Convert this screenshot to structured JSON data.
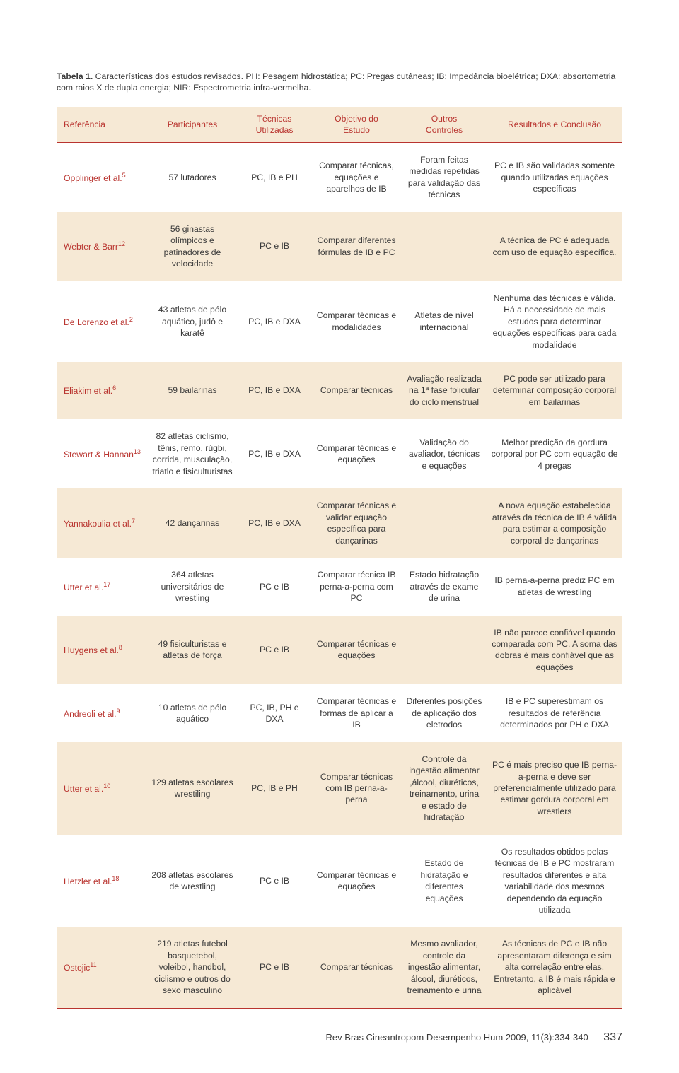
{
  "caption": {
    "label": "Tabela 1.",
    "text": " Características dos estudos revisados. PH: Pesagem hidrostática; PC: Pregas cutâneas; IB: Impedância bioelétrica; DXA: absortometria com raios X de dupla energia; NIR: Espectrometria infra-vermelha."
  },
  "style": {
    "accent": "#b9342f",
    "row_alt_bg": "#f6e9d5",
    "header_bg": "#f6e9d5",
    "body_color": "#3a3a3a",
    "font_family": "Lucida Sans",
    "font_size_pt": 9
  },
  "headers": {
    "c1": "Referência",
    "c2": "Participantes",
    "c3a": "Técnicas",
    "c3b": "Utilizadas",
    "c4a": "Objetivo do",
    "c4b": "Estudo",
    "c5a": "Outros",
    "c5b": "Controles",
    "c6": "Resultados e Conclusão"
  },
  "rows": [
    {
      "ref": "Opplinger et al.",
      "sup": "5",
      "p": "57 lutadores",
      "t": "PC, IB e PH",
      "o": "Comparar técnicas, equações e aparelhos de IB",
      "c": "Foram feitas medidas repetidas para validação das técnicas",
      "r": "PC e IB são validadas somente quando utilizadas equações específicas"
    },
    {
      "ref": "Webter & Barr",
      "sup": "12",
      "p": "56 ginastas olímpicos e patinadores de velocidade",
      "t": "PC e IB",
      "o": "Comparar diferentes fórmulas de IB e PC",
      "c": "",
      "r": "A técnica de PC é adequada com uso de equação específica."
    },
    {
      "ref": "De Lorenzo et al.",
      "sup": "2",
      "p": "43 atletas de pólo aquático, judô e karatê",
      "t": "PC, IB e DXA",
      "o": "Comparar técnicas e modalidades",
      "c": "Atletas de nível internacional",
      "r": "Nenhuma das técnicas é válida. Há a necessidade de mais estudos para determinar equações específicas para cada modalidade"
    },
    {
      "ref": "Eliakim et al.",
      "sup": "6",
      "p": "59 bailarinas",
      "t": "PC, IB e DXA",
      "o": "Comparar técnicas",
      "c": "Avaliação realizada na 1ª fase folicular do ciclo menstrual",
      "r": "PC pode ser utilizado para determinar composição corporal em bailarinas"
    },
    {
      "ref": "Stewart & Hannan",
      "sup": "13",
      "p": "82 atletas ciclismo, tênis, remo, rúgbi, corrida, musculação, triatlo e fisiculturistas",
      "t": "PC, IB e DXA",
      "o": "Comparar técnicas e equações",
      "c": "Validação do avaliador, técnicas e equações",
      "r": "Melhor predição da gordura corporal por PC com equação de 4 pregas"
    },
    {
      "ref": "Yannakoulia et al.",
      "sup": "7",
      "p": "42 dançarinas",
      "t": "PC, IB e DXA",
      "o": "Comparar técnicas e validar equação específica para dançarinas",
      "c": "",
      "r": "A nova equação estabelecida através da técnica de IB é válida para estimar a composição corporal de dançarinas"
    },
    {
      "ref": "Utter et al.",
      "sup": "17",
      "p": "364 atletas universitários de wrestling",
      "t": "PC e IB",
      "o": "Comparar técnica IB perna-a-perna com PC",
      "c": "Estado hidratação através de exame de urina",
      "r": "IB perna-a-perna prediz PC em atletas de wrestling"
    },
    {
      "ref": "Huygens et al.",
      "sup": "8",
      "p": "49 fisiculturistas e atletas de força",
      "t": "PC e IB",
      "o": "Comparar técnicas e equações",
      "c": "",
      "r": "IB não parece confiável quando comparada com PC. A soma das dobras é mais confiável que as equações"
    },
    {
      "ref": "Andreoli et al.",
      "sup": "9",
      "p": "10 atletas de pólo aquático",
      "t": "PC, IB, PH e DXA",
      "o": "Comparar técnicas e formas de aplicar a IB",
      "c": "Diferentes posições de aplicação dos eletrodos",
      "r": "IB e PC superestimam os resultados de referência determinados por PH e DXA"
    },
    {
      "ref": "Utter et al.",
      "sup": "10",
      "p": "129 atletas escolares wrestiling",
      "t": "PC, IB e PH",
      "o": "Comparar técnicas com IB perna-a-perna",
      "c": "Controle da ingestão alimentar ,álcool, diuréticos, treinamento, urina e estado de hidratação",
      "r": "PC é mais preciso que IB perna-a-perna e deve ser preferencialmente utilizado para estimar gordura corporal em wrestlers"
    },
    {
      "ref": "Hetzler et al.",
      "sup": "18",
      "p": "208 atletas escolares de wrestling",
      "t": "PC e IB",
      "o": "Comparar técnicas e equações",
      "c": "Estado de hidratação e diferentes equações",
      "r": "Os resultados obtidos pelas técnicas de IB e PC mostraram resultados diferentes e alta variabilidade dos mesmos dependendo da equação utilizada"
    },
    {
      "ref": "Ostojic",
      "sup": "11",
      "p": "219 atletas futebol basquetebol, voleibol, handbol, ciclismo e outros do sexo masculino",
      "t": "PC e IB",
      "o": "Comparar técnicas",
      "c": "Mesmo avaliador, controle da ingestão alimentar, álcool, diuréticos, treinamento e urina",
      "r": "As técnicas de PC e IB não apresentaram diferença e sim alta correlação entre elas.  Entretanto, a IB é mais rápida e aplicável"
    }
  ],
  "footer": {
    "journal": "Rev Bras Cineantropom Desempenho Hum 2009, 11(3):334-340",
    "page": "337"
  }
}
